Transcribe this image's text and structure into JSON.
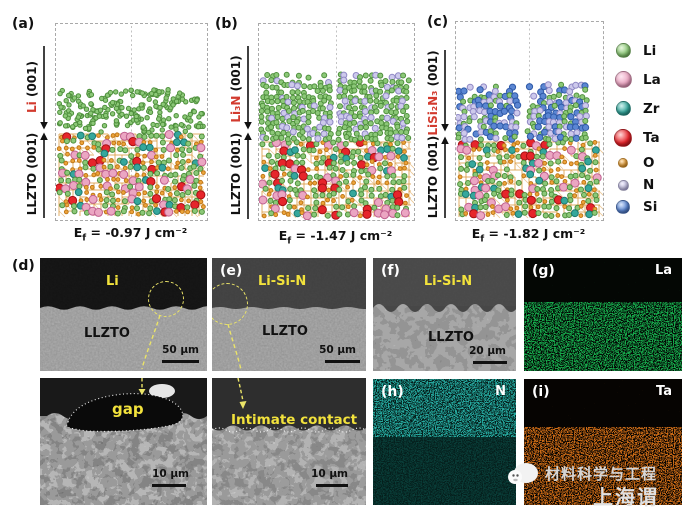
{
  "panels": {
    "a": {
      "letter": "(a)",
      "adlayer_formula": "Li",
      "adlayer_plane": " (001)",
      "substrate_label": "LLZTO (001)",
      "energy_prefix": "E",
      "energy_sub": "f",
      "energy_rest": " = -0.97 J cm⁻²"
    },
    "b": {
      "letter": "(b)",
      "adlayer_formula": "Li₃N",
      "adlayer_plane": " (001)",
      "substrate_label": "LLZTO (001)",
      "energy_prefix": "E",
      "energy_sub": "f",
      "energy_rest": " = -1.47 J cm⁻²"
    },
    "c": {
      "letter": "(c)",
      "adlayer_formula": "LiSi₂N₃",
      "adlayer_plane": " (001)",
      "substrate_label": "LLZTO (001)",
      "energy_prefix": "E",
      "energy_sub": "f",
      "energy_rest": " = -1.82 J cm⁻²"
    }
  },
  "legend": {
    "items": [
      {
        "element": "Li",
        "color": "#8cc878"
      },
      {
        "element": "La",
        "color": "#eba6c2"
      },
      {
        "element": "Zr",
        "color": "#35a79c"
      },
      {
        "element": "Ta",
        "color": "#e6252b"
      },
      {
        "element": "O",
        "color": "#eda43b"
      },
      {
        "element": "N",
        "color": "#cdc9ec"
      },
      {
        "element": "Si",
        "color": "#5b86d2"
      }
    ]
  },
  "micrographs": {
    "d": {
      "letter": "(d)",
      "region_top": "Li",
      "region_bottom": "LLZTO",
      "scale_bar": "50 μm"
    },
    "d_zoom": {
      "annotation": "gap",
      "scale_bar": "10 μm"
    },
    "e": {
      "letter": "(e)",
      "region_top": "Li-Si-N",
      "region_bottom": "LLZTO",
      "scale_bar": "50 μm"
    },
    "e_zoom": {
      "annotation": "Intimate contact",
      "scale_bar": "10 μm"
    },
    "f": {
      "letter": "(f)",
      "region_top": "Li-Si-N",
      "region_bottom": "LLZTO",
      "scale_bar": "20 μm"
    },
    "g": {
      "letter": "(g)",
      "element": "La",
      "map_color": "#17a84b"
    },
    "h": {
      "letter": "(h)",
      "element": "N",
      "map_color": "#2fc8bc"
    },
    "i": {
      "letter": "(i)",
      "element": "Ta",
      "map_color": "#c96a16"
    }
  },
  "watermark": {
    "line1": "材料科学与工程",
    "line2": "上海谓"
  }
}
